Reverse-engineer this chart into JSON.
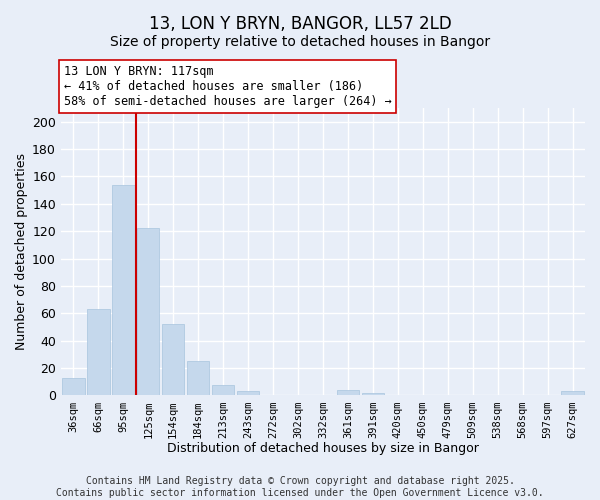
{
  "title": "13, LON Y BRYN, BANGOR, LL57 2LD",
  "subtitle": "Size of property relative to detached houses in Bangor",
  "xlabel": "Distribution of detached houses by size in Bangor",
  "ylabel": "Number of detached properties",
  "bar_labels": [
    "36sqm",
    "66sqm",
    "95sqm",
    "125sqm",
    "154sqm",
    "184sqm",
    "213sqm",
    "243sqm",
    "272sqm",
    "302sqm",
    "332sqm",
    "361sqm",
    "391sqm",
    "420sqm",
    "450sqm",
    "479sqm",
    "509sqm",
    "538sqm",
    "568sqm",
    "597sqm",
    "627sqm"
  ],
  "bar_values": [
    13,
    63,
    154,
    122,
    52,
    25,
    8,
    3,
    0,
    0,
    0,
    4,
    2,
    0,
    0,
    0,
    0,
    0,
    0,
    0,
    3
  ],
  "bar_color": "#c5d8ec",
  "bar_edge_color": "#a8c4de",
  "ylim": [
    0,
    210
  ],
  "yticks": [
    0,
    20,
    40,
    60,
    80,
    100,
    120,
    140,
    160,
    180,
    200
  ],
  "vline_x": 2.5,
  "annotation_title": "13 LON Y BRYN: 117sqm",
  "annotation_line1": "← 41% of detached houses are smaller (186)",
  "annotation_line2": "58% of semi-detached houses are larger (264) →",
  "annotation_box_color": "#ffffff",
  "annotation_box_edge": "#cc0000",
  "footer_line1": "Contains HM Land Registry data © Crown copyright and database right 2025.",
  "footer_line2": "Contains public sector information licensed under the Open Government Licence v3.0.",
  "background_color": "#e8eef8",
  "grid_color": "#ffffff",
  "title_fontsize": 12,
  "subtitle_fontsize": 10,
  "footer_fontsize": 7
}
